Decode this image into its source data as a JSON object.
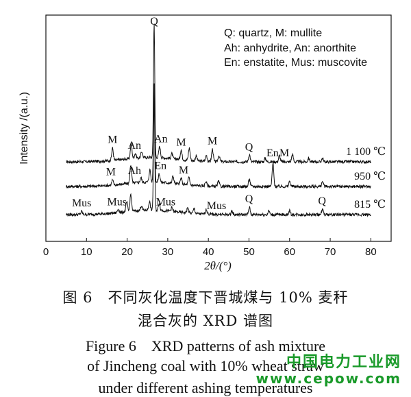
{
  "chart_data": {
    "type": "line",
    "xlabel": "2θ/(°)",
    "ylabel": "Intensity /(a.u.)",
    "xlim": [
      0,
      85
    ],
    "xticks": [
      0,
      10,
      20,
      30,
      40,
      50,
      60,
      70,
      80
    ],
    "x_range": [
      5,
      80
    ],
    "legend_lines": [
      "Q: quartz, M: mullite",
      "Ah: anhydrite, An: anorthite",
      "En: enstatite, Mus: muscovite"
    ],
    "legend_position": "top-right",
    "series": [
      {
        "name": "1 100 ℃",
        "baseline": 0.42,
        "peaks": [
          [
            16.4,
            0.5
          ],
          [
            21.0,
            0.6
          ],
          [
            22.0,
            0.2
          ],
          [
            23.6,
            0.25
          ],
          [
            26.65,
            5.5
          ],
          [
            28.0,
            0.45
          ],
          [
            31.0,
            0.2
          ],
          [
            33.3,
            0.4
          ],
          [
            35.3,
            0.5
          ],
          [
            37.0,
            0.2
          ],
          [
            39.5,
            0.25
          ],
          [
            41.0,
            0.5
          ],
          [
            42.6,
            0.25
          ],
          [
            50.1,
            0.3
          ],
          [
            54.0,
            0.15
          ],
          [
            57.5,
            0.25
          ],
          [
            60.7,
            0.3
          ],
          [
            64.7,
            0.15
          ],
          [
            68.1,
            0.15
          ]
        ],
        "label": "1 100 ℃"
      },
      {
        "name": "950 ℃",
        "baseline": 0.2,
        "peaks": [
          [
            16.4,
            0.2
          ],
          [
            20.9,
            0.75
          ],
          [
            23.4,
            0.2
          ],
          [
            25.6,
            0.5
          ],
          [
            26.65,
            4.0
          ],
          [
            27.9,
            0.35
          ],
          [
            31.3,
            0.3
          ],
          [
            33.3,
            0.25
          ],
          [
            35.2,
            0.3
          ],
          [
            39.4,
            0.2
          ],
          [
            42.5,
            0.2
          ],
          [
            50.1,
            0.3
          ],
          [
            55.9,
            0.95
          ],
          [
            60.0,
            0.2
          ],
          [
            68.1,
            0.2
          ]
        ],
        "label": "950 ℃"
      },
      {
        "name": "815 ℃",
        "baseline": 0.0,
        "peaks": [
          [
            8.8,
            0.12
          ],
          [
            17.8,
            0.15
          ],
          [
            19.9,
            0.4
          ],
          [
            20.9,
            0.7
          ],
          [
            23.5,
            0.2
          ],
          [
            25.5,
            0.35
          ],
          [
            26.65,
            4.5
          ],
          [
            27.9,
            0.3
          ],
          [
            31.0,
            0.15
          ],
          [
            34.9,
            0.2
          ],
          [
            36.5,
            0.2
          ],
          [
            39.5,
            0.2
          ],
          [
            45.8,
            0.15
          ],
          [
            50.1,
            0.3
          ],
          [
            54.9,
            0.15
          ],
          [
            60.0,
            0.15
          ],
          [
            68.1,
            0.2
          ]
        ],
        "label": "815 ℃"
      }
    ],
    "annotations": [
      {
        "text": "Q",
        "x": 26.65,
        "series": 0
      },
      {
        "text": "M",
        "x": 16.4,
        "series": 0
      },
      {
        "text": "An",
        "x": 21.8,
        "series": 0
      },
      {
        "text": "An",
        "x": 28.3,
        "series": 0
      },
      {
        "text": "M",
        "x": 33.3,
        "series": 0
      },
      {
        "text": "M",
        "x": 41.0,
        "series": 0
      },
      {
        "text": "Q",
        "x": 50.0,
        "series": 0
      },
      {
        "text": "En",
        "x": 55.8,
        "series": 0
      },
      {
        "text": "M",
        "x": 58.7,
        "series": 0
      },
      {
        "text": "M",
        "x": 16.0,
        "series": 1
      },
      {
        "text": "Ah",
        "x": 21.8,
        "series": 1
      },
      {
        "text": "En",
        "x": 28.2,
        "series": 1
      },
      {
        "text": "M",
        "x": 33.9,
        "series": 1
      },
      {
        "text": "Mus",
        "x": 8.8,
        "series": 2
      },
      {
        "text": "Mus",
        "x": 17.5,
        "series": 2
      },
      {
        "text": "Mus",
        "x": 29.5,
        "series": 2
      },
      {
        "text": "Mus",
        "x": 42.0,
        "series": 2
      },
      {
        "text": "Q",
        "x": 50.0,
        "series": 2
      },
      {
        "text": "Q",
        "x": 68.0,
        "series": 2
      }
    ]
  },
  "caption": {
    "cn_line1": "图 6　不同灰化温度下晋城煤与 10% 麦秆",
    "cn_line2": "混合灰的 XRD 谱图",
    "en_line1": "Figure 6　XRD patterns of ash mixture",
    "en_line2": "of Jincheng coal with 10% wheat straw",
    "en_line3": "under different ashing temperatures"
  },
  "watermark": {
    "line1": "中国电力工业网",
    "line2": "www.cepow.com"
  }
}
